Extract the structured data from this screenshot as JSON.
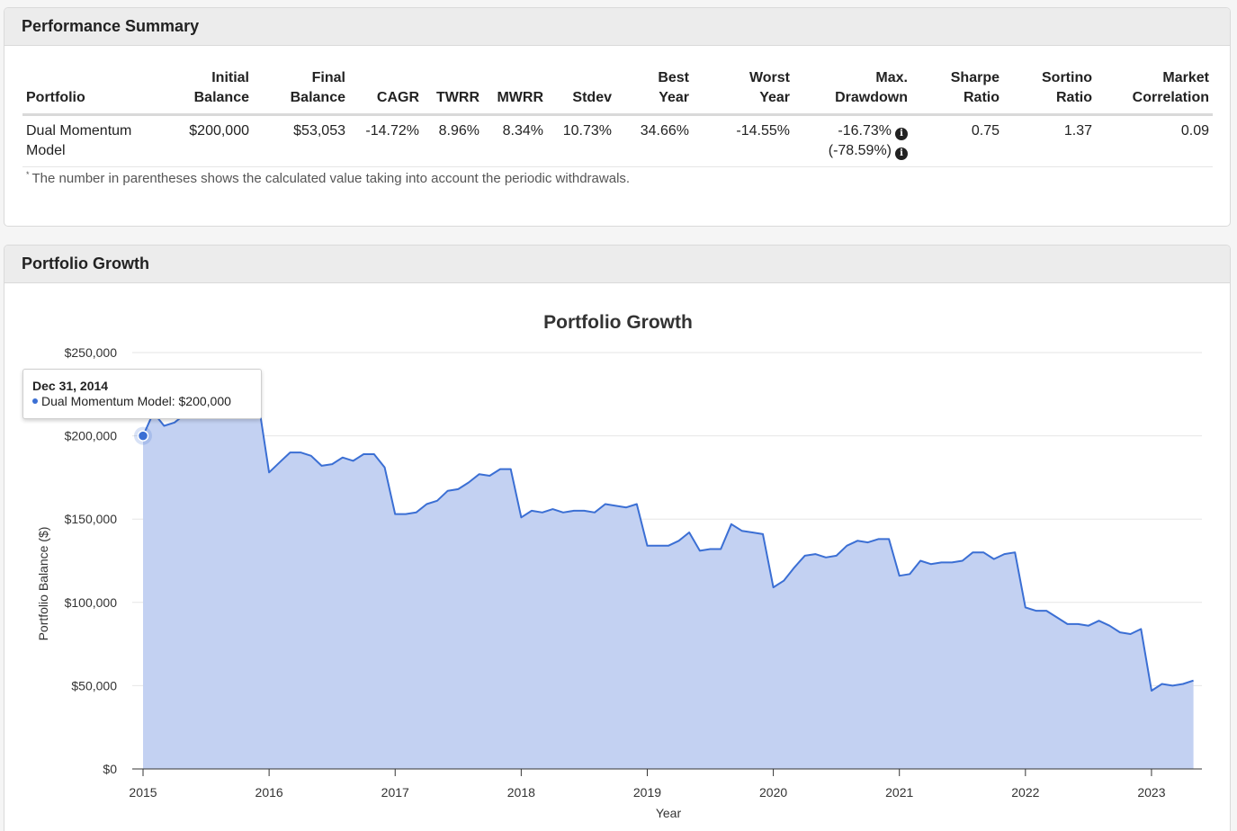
{
  "summary": {
    "title": "Performance Summary",
    "headers": [
      [
        "",
        "Portfolio"
      ],
      [
        "Initial",
        "Balance"
      ],
      [
        "Final",
        "Balance"
      ],
      [
        "",
        "CAGR"
      ],
      [
        "",
        "TWRR"
      ],
      [
        "",
        "MWRR"
      ],
      [
        "",
        "Stdev"
      ],
      [
        "Best",
        "Year"
      ],
      [
        "Worst",
        "Year"
      ],
      [
        "Max.",
        "Drawdown"
      ],
      [
        "Sharpe",
        "Ratio"
      ],
      [
        "Sortino",
        "Ratio"
      ],
      [
        "Market",
        "Correlation"
      ]
    ],
    "row": {
      "portfolio_line1": "Dual Momentum",
      "portfolio_line2": "Model",
      "initial_balance": "$200,000",
      "final_balance": "$53,053",
      "cagr": "-14.72%",
      "twrr": "8.96%",
      "mwrr": "8.34%",
      "stdev": "10.73%",
      "best_year": "34.66%",
      "worst_year": "-14.55%",
      "max_drawdown": "-16.73%",
      "max_drawdown_withdrawals": "(-78.59%)",
      "sharpe": "0.75",
      "sortino": "1.37",
      "correlation": "0.09"
    },
    "footnote_mark": "*",
    "footnote": "The number in parentheses shows the calculated value taking into account the periodic withdrawals."
  },
  "growth": {
    "title": "Portfolio Growth",
    "tooltip": {
      "date": "Dec 31, 2014",
      "text": "Dual Momentum Model: $200,000"
    }
  },
  "colors": {
    "line": "#3b6fd4",
    "fill": "#c3d1f2"
  },
  "chart_data": {
    "type": "area",
    "title": "Portfolio Growth",
    "xlabel": "Year",
    "ylabel": "Portfolio Balance ($)",
    "ylim": [
      0,
      250000
    ],
    "y_ticks": [
      0,
      50000,
      100000,
      150000,
      200000,
      250000
    ],
    "y_tick_labels": [
      "$0",
      "$50,000",
      "$100,000",
      "$150,000",
      "$200,000",
      "$250,000"
    ],
    "x_ticks": [
      2015,
      2016,
      2017,
      2018,
      2019,
      2020,
      2021,
      2022,
      2023
    ],
    "x_tick_labels": [
      "2015",
      "2016",
      "2017",
      "2018",
      "2019",
      "2020",
      "2021",
      "2022",
      "2023"
    ],
    "grid": true,
    "series": [
      {
        "name": "Dual Momentum Model",
        "x": [
          2015.0,
          2015.083,
          2015.167,
          2015.25,
          2015.333,
          2015.417,
          2015.5,
          2015.583,
          2015.667,
          2015.75,
          2015.833,
          2015.917,
          2016.0,
          2016.083,
          2016.167,
          2016.25,
          2016.333,
          2016.417,
          2016.5,
          2016.583,
          2016.667,
          2016.75,
          2016.833,
          2016.917,
          2017.0,
          2017.083,
          2017.167,
          2017.25,
          2017.333,
          2017.417,
          2017.5,
          2017.583,
          2017.667,
          2017.75,
          2017.833,
          2017.917,
          2018.0,
          2018.083,
          2018.167,
          2018.25,
          2018.333,
          2018.417,
          2018.5,
          2018.583,
          2018.667,
          2018.75,
          2018.833,
          2018.917,
          2019.0,
          2019.083,
          2019.167,
          2019.25,
          2019.333,
          2019.417,
          2019.5,
          2019.583,
          2019.667,
          2019.75,
          2019.833,
          2019.917,
          2020.0,
          2020.083,
          2020.167,
          2020.25,
          2020.333,
          2020.417,
          2020.5,
          2020.583,
          2020.667,
          2020.75,
          2020.833,
          2020.917,
          2021.0,
          2021.083,
          2021.167,
          2021.25,
          2021.333,
          2021.417,
          2021.5,
          2021.583,
          2021.667,
          2021.75,
          2021.833,
          2021.917,
          2022.0,
          2022.083,
          2022.167,
          2022.25,
          2022.333,
          2022.417,
          2022.5,
          2022.583,
          2022.667,
          2022.75,
          2022.833,
          2022.917,
          2023.0,
          2023.083,
          2023.167,
          2023.25,
          2023.333
        ],
        "values": [
          200000,
          214000,
          206000,
          208000,
          213000,
          216000,
          214000,
          220000,
          222000,
          221000,
          223000,
          219000,
          178000,
          184000,
          190000,
          190000,
          188000,
          182000,
          183000,
          187000,
          185000,
          189000,
          189000,
          181000,
          153000,
          153000,
          154000,
          159000,
          161000,
          167000,
          168000,
          172000,
          177000,
          176000,
          180000,
          180000,
          151000,
          155000,
          154000,
          156000,
          154000,
          155000,
          155000,
          154000,
          159000,
          158000,
          157000,
          159000,
          134000,
          134000,
          134000,
          137000,
          142000,
          131000,
          132000,
          132000,
          147000,
          143000,
          142000,
          141000,
          109000,
          113000,
          121000,
          128000,
          129000,
          127000,
          128000,
          134000,
          137000,
          136000,
          138000,
          138000,
          116000,
          117000,
          125000,
          123000,
          124000,
          124000,
          125000,
          130000,
          130000,
          126000,
          129000,
          130000,
          97000,
          95000,
          95000,
          91000,
          87000,
          87000,
          86000,
          89000,
          86000,
          82000,
          81000,
          84000,
          47000,
          51000,
          50000,
          51000,
          53053
        ]
      }
    ]
  }
}
